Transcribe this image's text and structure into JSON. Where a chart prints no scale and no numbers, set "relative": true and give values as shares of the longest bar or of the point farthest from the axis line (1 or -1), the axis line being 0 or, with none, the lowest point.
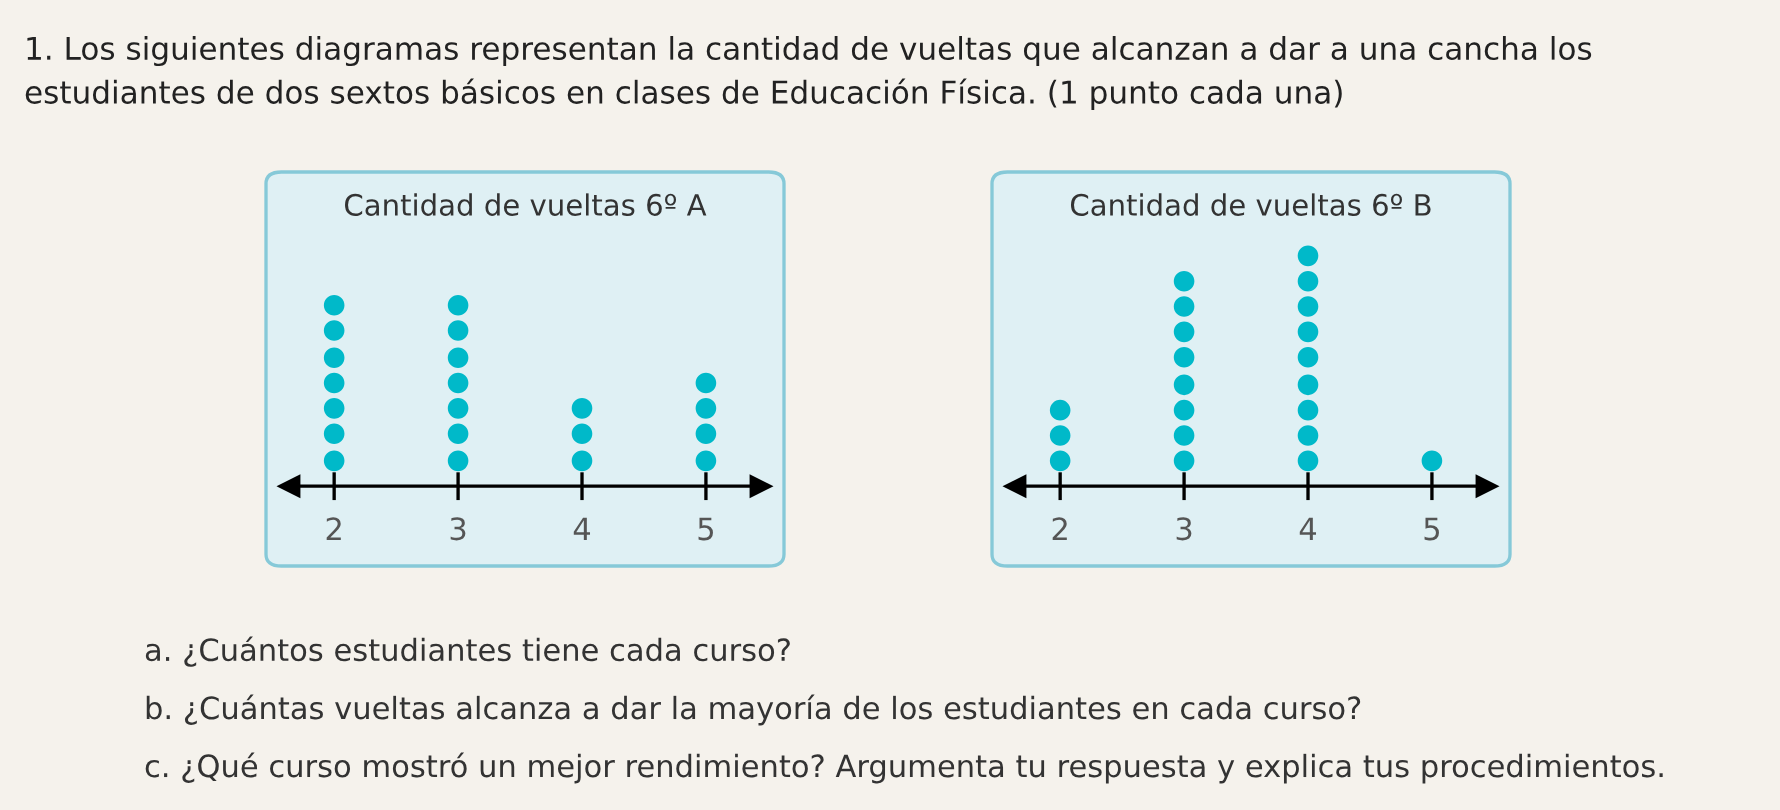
{
  "chart_data": [
    {
      "type": "scatter",
      "title": "Cantidad de vueltas 6º A",
      "color": "#00b9c9",
      "marker": "circle",
      "grid": false,
      "tick_labels": "x",
      "x": [
        2,
        2,
        2,
        2,
        2,
        2,
        2,
        3,
        3,
        3,
        3,
        3,
        3,
        3,
        4,
        4,
        4,
        5,
        5,
        5,
        5
      ],
      "values": [
        0.14,
        0.29,
        0.43,
        0.57,
        0.71,
        0.86,
        1,
        0.14,
        0.29,
        0.43,
        0.57,
        0.71,
        0.86,
        1,
        0.14,
        0.29,
        0.43,
        0.14,
        0.29,
        0.43,
        0.57
      ],
      "relative": true,
      "xlim": [
        1.45,
        5.63
      ],
      "xticks": [
        2,
        3,
        4,
        5
      ],
      "annotations": [
        "1. Los siguientes diagramas representan la cantidad de vueltas que alcanzan a dar a una cancha los estudiantes de dos sextos básicos en clases de Educación Física. (1 punto cada una)",
        "a. ¿Cuántos estudiantes tiene cada curso?",
        "b. ¿Cuántas vueltas alcanza a dar la mayoría de los estudiantes en cada curso?",
        "c. ¿Qué curso mostró un mejor rendimiento? Argumenta tu respuesta y explica tus procedimientos."
      ]
    },
    {
      "type": "scatter",
      "title": "Cantidad de vueltas 6º B",
      "color": "#00b9c9",
      "marker": "circle",
      "grid": false,
      "tick_labels": "x",
      "x": [
        2,
        2,
        2,
        3,
        3,
        3,
        3,
        3,
        3,
        3,
        3,
        4,
        4,
        4,
        4,
        4,
        4,
        4,
        4,
        4,
        5
      ],
      "values": [
        0.11,
        0.22,
        0.33,
        0.11,
        0.22,
        0.33,
        0.44,
        0.56,
        0.67,
        0.78,
        0.89,
        0.11,
        0.22,
        0.33,
        0.44,
        0.56,
        0.67,
        0.78,
        0.89,
        1,
        0.11
      ],
      "relative": true,
      "xlim": [
        1.45,
        5.63
      ],
      "xticks": [
        2,
        3,
        4,
        5
      ]
    }
  ]
}
